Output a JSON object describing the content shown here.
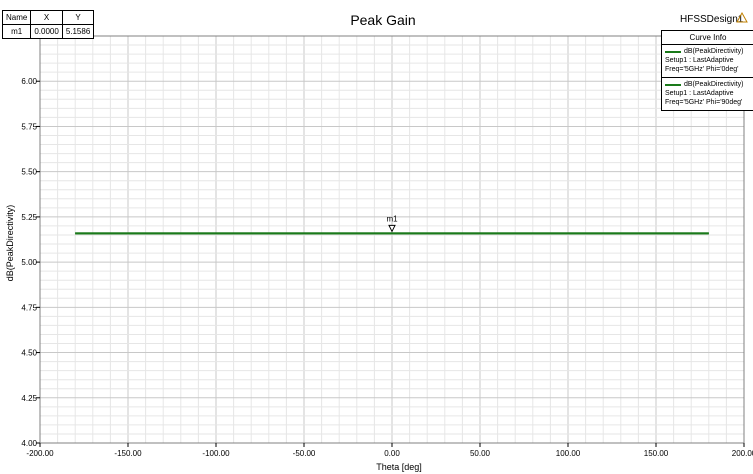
{
  "design_name": "HFSSDesign1",
  "marker_table": {
    "headers": [
      "Name",
      "X",
      "Y"
    ],
    "rows": [
      [
        "m1",
        "0.0000",
        "5.1586"
      ]
    ]
  },
  "legend": {
    "header": "Curve Info",
    "entries": [
      {
        "name": "dB(PeakDirectivity)",
        "setup": "Setup1 : LastAdaptive",
        "freq": "Freq='5GHz' Phi='0deg'",
        "color": "#1a7a1a"
      },
      {
        "name": "dB(PeakDirectivity)",
        "setup": "Setup1 : LastAdaptive",
        "freq": "Freq='5GHz' Phi='90deg'",
        "color": "#1a7a1a"
      }
    ]
  },
  "chart_data": {
    "type": "line",
    "title": "Peak Gain",
    "xlabel": "Theta [deg]",
    "ylabel": "dB(PeakDirectivity)",
    "xlim": [
      -200,
      200
    ],
    "ylim": [
      4.0,
      6.25
    ],
    "x_ticks": [
      "-200.00",
      "-150.00",
      "-100.00",
      "-50.00",
      "0.00",
      "50.00",
      "100.00",
      "150.00",
      "200.00"
    ],
    "y_ticks": [
      "4.00",
      "4.25",
      "4.50",
      "4.75",
      "5.00",
      "5.25",
      "5.50",
      "5.75",
      "6.00"
    ],
    "grid": true,
    "series": [
      {
        "name": "dB(PeakDirectivity)",
        "x": [
          -180,
          180
        ],
        "y": [
          5.1586,
          5.1586
        ],
        "color": "#1a7a1a"
      },
      {
        "name": "dB(PeakDirectivity)",
        "x": [
          -180,
          180
        ],
        "y": [
          5.1586,
          5.1586
        ],
        "color": "#1a7a1a"
      }
    ],
    "markers": [
      {
        "name": "m1",
        "x": 0.0,
        "y": 5.1586
      }
    ]
  }
}
